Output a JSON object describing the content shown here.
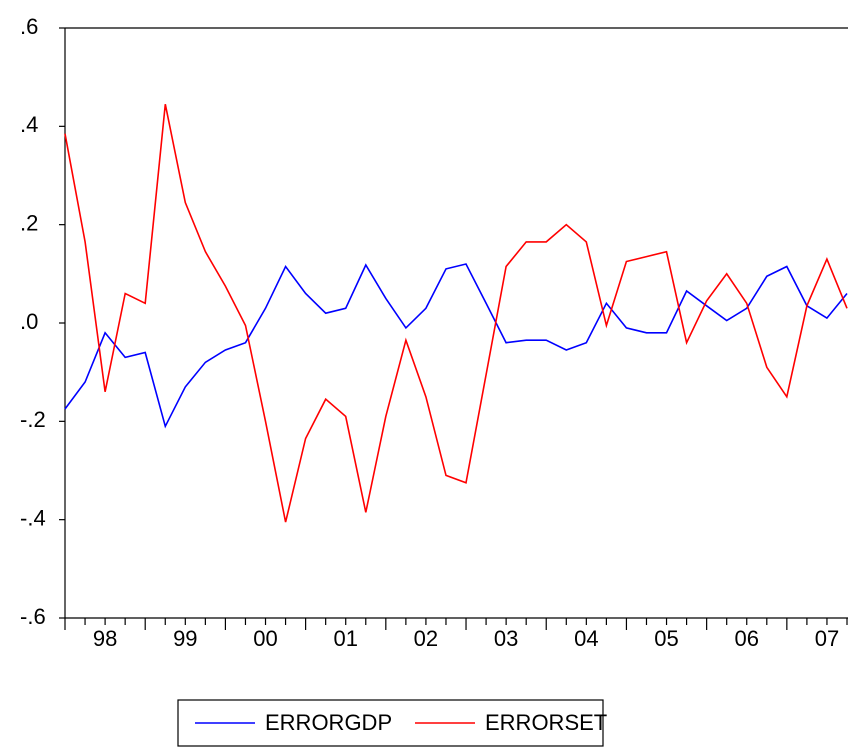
{
  "chart_data": {
    "type": "line",
    "x": [
      1998,
      1998.25,
      1998.5,
      1998.75,
      1999,
      1999.25,
      1999.5,
      1999.75,
      2000,
      2000.25,
      2000.5,
      2000.75,
      2001,
      2001.25,
      2001.5,
      2001.75,
      2002,
      2002.25,
      2002.5,
      2002.75,
      2003,
      2003.25,
      2003.5,
      2003.75,
      2004,
      2004.25,
      2004.5,
      2004.75,
      2005,
      2005.25,
      2005.5,
      2005.75,
      2006,
      2006.25,
      2006.5,
      2006.75,
      2007,
      2007.25,
      2007.5,
      2007.75
    ],
    "series": [
      {
        "name": "ERRORGDP",
        "color": "#0000ff",
        "values": [
          -0.175,
          -0.12,
          -0.02,
          -0.07,
          -0.06,
          -0.21,
          -0.13,
          -0.08,
          -0.055,
          -0.04,
          0.03,
          0.115,
          0.06,
          0.02,
          0.03,
          0.118,
          0.05,
          -0.01,
          0.03,
          0.11,
          0.12,
          0.04,
          -0.04,
          -0.035,
          -0.035,
          -0.055,
          -0.04,
          0.04,
          -0.01,
          -0.02,
          -0.02,
          0.065,
          0.035,
          0.005,
          0.03,
          0.095,
          0.115,
          0.035,
          0.01,
          0.06
        ]
      },
      {
        "name": "ERRORSET",
        "color": "#ff0000",
        "values": [
          0.385,
          0.165,
          -0.14,
          0.06,
          0.04,
          0.445,
          0.245,
          0.145,
          0.075,
          -0.005,
          -0.2,
          -0.405,
          -0.235,
          -0.155,
          -0.19,
          -0.385,
          -0.19,
          -0.035,
          -0.15,
          -0.31,
          -0.325,
          -0.105,
          0.115,
          0.165,
          0.165,
          0.2,
          0.165,
          -0.005,
          0.125,
          0.135,
          0.145,
          -0.04,
          0.045,
          0.1,
          0.04,
          -0.09,
          -0.15,
          0.035,
          0.13,
          0.03
        ]
      }
    ],
    "xlim": [
      1998,
      2007.75
    ],
    "xticks": [
      {
        "value": 1998.5,
        "label": "98"
      },
      {
        "value": 1999.5,
        "label": "99"
      },
      {
        "value": 2000.5,
        "label": "00"
      },
      {
        "value": 2001.5,
        "label": "01"
      },
      {
        "value": 2002.5,
        "label": "02"
      },
      {
        "value": 2003.5,
        "label": "03"
      },
      {
        "value": 2004.5,
        "label": "04"
      },
      {
        "value": 2005.5,
        "label": "05"
      },
      {
        "value": 2006.5,
        "label": "06"
      },
      {
        "value": 2007.5,
        "label": "07"
      }
    ],
    "ylim": [
      -0.6,
      0.6
    ],
    "yticks": [
      {
        "value": -0.6,
        "label": "-.6"
      },
      {
        "value": -0.4,
        "label": "-.4"
      },
      {
        "value": -0.2,
        "label": "-.2"
      },
      {
        "value": 0,
        "label": ".0"
      },
      {
        "value": 0.2,
        "label": ".2"
      },
      {
        "value": 0.4,
        "label": ".4"
      },
      {
        "value": 0.6,
        "label": ".6"
      }
    ],
    "legend": "bottom"
  }
}
